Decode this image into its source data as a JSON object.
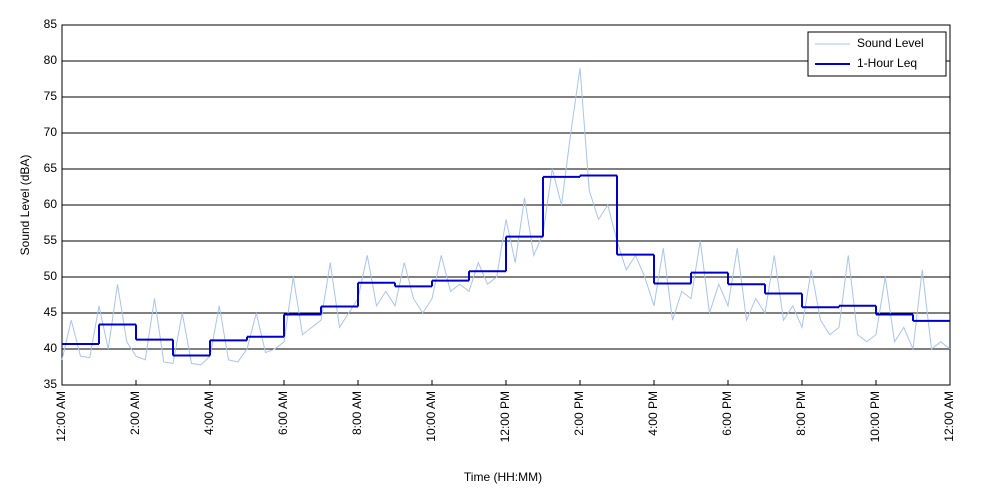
{
  "chart_data": {
    "type": "line",
    "xlabel": "Time (HH:MM)",
    "ylabel": "Sound Level (dBA)",
    "xlim": [
      0,
      24
    ],
    "xticks": [
      {
        "value": 0,
        "label": "12:00 AM"
      },
      {
        "value": 2,
        "label": "2:00 AM"
      },
      {
        "value": 4,
        "label": "4:00 AM"
      },
      {
        "value": 6,
        "label": "6:00 AM"
      },
      {
        "value": 8,
        "label": "8:00 AM"
      },
      {
        "value": 10,
        "label": "10:00 AM"
      },
      {
        "value": 12,
        "label": "12:00 PM"
      },
      {
        "value": 14,
        "label": "2:00 PM"
      },
      {
        "value": 16,
        "label": "4:00 PM"
      },
      {
        "value": 18,
        "label": "6:00 PM"
      },
      {
        "value": 20,
        "label": "8:00 PM"
      },
      {
        "value": 22,
        "label": "10:00 PM"
      },
      {
        "value": 24,
        "label": "12:00 AM"
      }
    ],
    "ylim": [
      35,
      85
    ],
    "yticks": [
      35,
      40,
      45,
      50,
      55,
      60,
      65,
      70,
      75,
      80,
      85
    ],
    "grid": true,
    "legend": "upper right",
    "series": [
      {
        "name": "Sound Level",
        "color": "#a8c4f0",
        "style": "line",
        "x": [
          0,
          0.25,
          0.5,
          0.75,
          1,
          1.25,
          1.5,
          1.75,
          2,
          2.25,
          2.5,
          2.75,
          3,
          3.25,
          3.5,
          3.75,
          4,
          4.25,
          4.5,
          4.75,
          5,
          5.25,
          5.5,
          5.75,
          6,
          6.25,
          6.5,
          6.75,
          7,
          7.25,
          7.5,
          7.75,
          8,
          8.25,
          8.5,
          8.75,
          9,
          9.25,
          9.5,
          9.75,
          10,
          10.25,
          10.5,
          10.75,
          11,
          11.25,
          11.5,
          11.75,
          12,
          12.25,
          12.5,
          12.75,
          13,
          13.25,
          13.5,
          13.75,
          14,
          14.25,
          14.5,
          14.75,
          15,
          15.25,
          15.5,
          15.75,
          16,
          16.25,
          16.5,
          16.75,
          17,
          17.25,
          17.5,
          17.75,
          18,
          18.25,
          18.5,
          18.75,
          19,
          19.25,
          19.5,
          19.75,
          20,
          20.25,
          20.5,
          20.75,
          21,
          21.25,
          21.5,
          21.75,
          22,
          22.25,
          22.5,
          22.75,
          23,
          23.25,
          23.5,
          23.75,
          24
        ],
        "values": [
          38.5,
          44,
          39,
          38.8,
          46,
          40,
          49,
          41,
          39,
          38.5,
          47,
          38.2,
          38,
          45,
          38,
          37.8,
          39,
          46,
          38.5,
          38.2,
          40,
          45,
          39.5,
          40,
          41,
          50,
          42,
          43,
          44,
          52,
          43,
          45,
          47,
          53,
          46,
          48,
          46,
          52,
          47,
          45,
          47,
          53,
          48,
          49,
          48,
          52,
          49,
          50,
          58,
          52,
          61,
          53,
          56,
          65,
          60,
          70,
          79,
          62,
          58,
          60,
          55,
          51,
          53,
          50,
          46,
          54,
          44,
          48,
          47,
          55,
          45,
          49,
          46,
          54,
          44,
          47,
          45,
          53,
          44,
          46,
          43,
          51,
          44,
          42,
          43,
          53,
          42,
          41,
          42,
          50,
          41,
          43,
          40,
          51,
          40,
          41,
          40
        ]
      },
      {
        "name": "1-Hour Leq",
        "color": "#0000cc",
        "style": "step",
        "x": [
          0,
          1,
          2,
          3,
          4,
          5,
          6,
          7,
          8,
          9,
          10,
          11,
          12,
          13,
          14,
          15,
          16,
          17,
          18,
          19,
          20,
          21,
          22,
          23
        ],
        "values": [
          40.7,
          43.4,
          41.3,
          39.1,
          41.2,
          41.7,
          44.8,
          45.9,
          49.2,
          48.7,
          49.5,
          50.8,
          55.6,
          63.9,
          64.1,
          53.1,
          49.1,
          50.6,
          49.0,
          47.7,
          45.8,
          46.0,
          44.8,
          43.9
        ]
      }
    ]
  }
}
